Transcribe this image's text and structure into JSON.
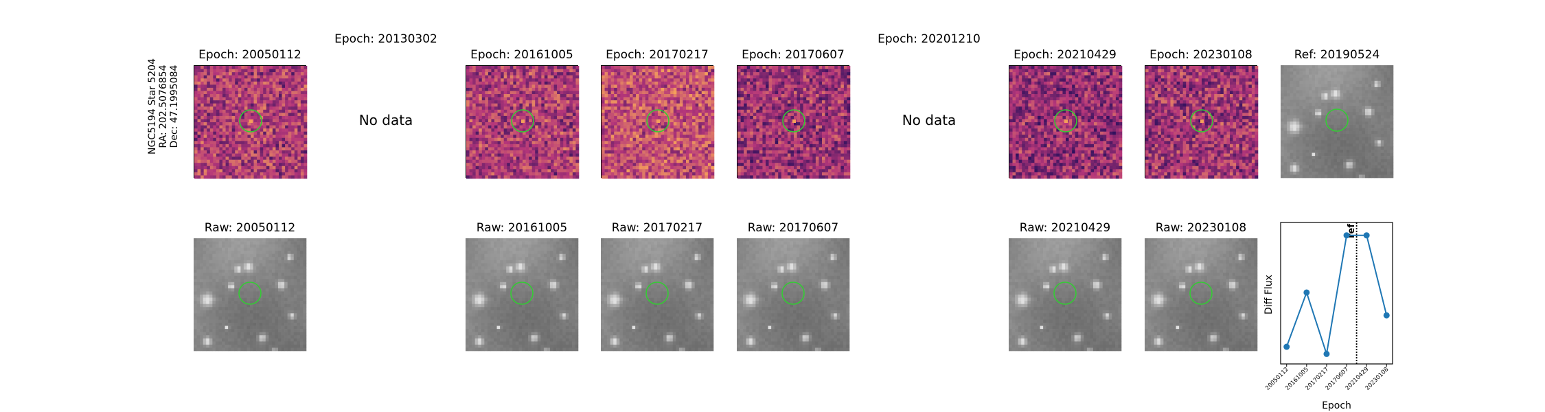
{
  "row_label": {
    "line1": "NGC5194 Star 5204",
    "line2": "RA: 202.5076854",
    "line3": "Dec: 47.1995084"
  },
  "top_titles": [
    "Epoch: 20050112",
    "Epoch: 20130302",
    "Epoch: 20161005",
    "Epoch: 20170217",
    "Epoch: 20170607",
    "Epoch: 20201210",
    "Epoch: 20210429",
    "Epoch: 20230108",
    "Ref: 20190524"
  ],
  "bottom_titles": [
    "Raw: 20050112",
    "Raw: 20161005",
    "Raw: 20170217",
    "Raw: 20170607",
    "Raw: 20210429",
    "Raw: 20230108"
  ],
  "no_data_text": "No data",
  "colors": {
    "circle": "#33cc33",
    "line": "#1f77b4",
    "diff_low": "#2a0f5c",
    "diff_mid": "#b5367a",
    "diff_high": "#f7a35a",
    "raw_low": "#5a5a5a",
    "raw_high": "#e0e0e0"
  },
  "chart_data": {
    "type": "line",
    "xlabel": "Epoch",
    "ylabel": "Diff Flux",
    "categories": [
      "20050112",
      "20161005",
      "20170217",
      "20170607",
      "20210429",
      "20230108"
    ],
    "values": [
      0.0,
      0.38,
      -0.05,
      0.78,
      0.78,
      0.22
    ],
    "ylim": [
      -0.12,
      0.87
    ],
    "reference_line": {
      "label": "ref",
      "position": 3.5,
      "style": "dotted"
    },
    "grid": false
  }
}
